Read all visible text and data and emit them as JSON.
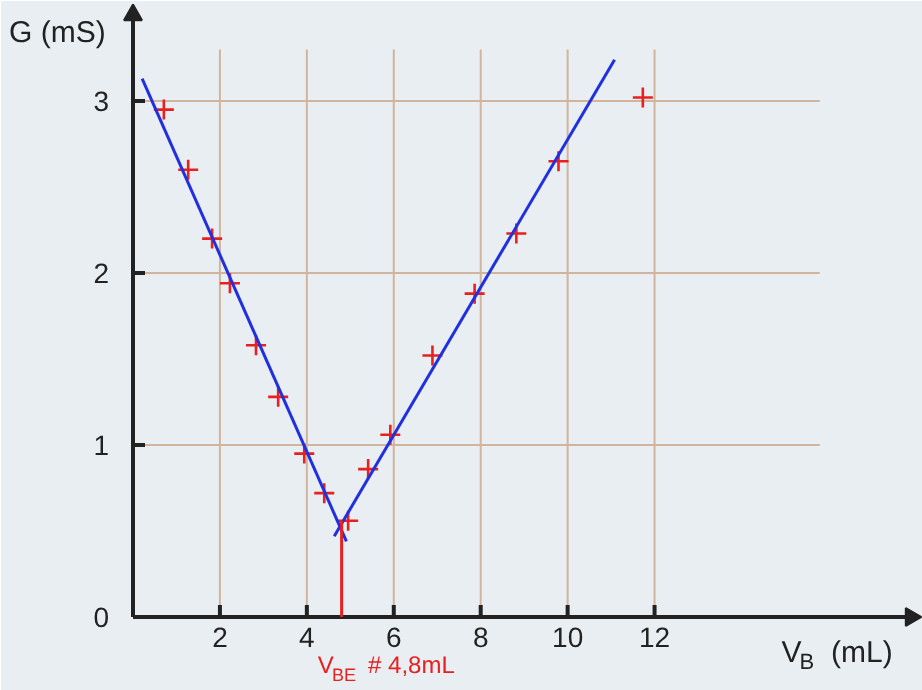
{
  "chart_data": {
    "type": "scatter",
    "xlabel": "V$_{B}$ (mL)",
    "ylabel": "G (mS)",
    "xlim": [
      0,
      17.9
    ],
    "ylim": [
      0,
      3.5
    ],
    "xticks": [
      2,
      4,
      6,
      8,
      10,
      12
    ],
    "yticks": [
      0,
      1,
      2,
      3
    ],
    "grid": true,
    "series": [
      {
        "marker": "cross",
        "color": "#e82020",
        "x": [
          0.71,
          1.27,
          1.82,
          2.23,
          2.83,
          3.34,
          3.94,
          4.4,
          4.95,
          5.41,
          5.92,
          6.89,
          7.86,
          8.82,
          9.79,
          11.73
        ],
        "values": [
          2.95,
          2.6,
          2.2,
          1.94,
          1.58,
          1.28,
          0.95,
          0.72,
          0.56,
          0.86,
          1.06,
          1.52,
          1.88,
          2.23,
          2.65,
          3.02
        ]
      },
      {
        "type": "line",
        "color": "#2030e0",
        "x": [
          0.21,
          4.91
        ],
        "values": [
          3.13,
          0.44
        ]
      },
      {
        "type": "line",
        "color": "#2030e0",
        "x": [
          4.63,
          11.08
        ],
        "values": [
          0.47,
          3.24
        ]
      },
      {
        "type": "line",
        "color": "#e82020",
        "x": [
          4.8,
          4.8
        ],
        "values": [
          0,
          0.56
        ]
      }
    ],
    "annotations": [
      {
        "text": "V$_{BE}$ # 4,8mL",
        "x": 4.8,
        "y": 0
      }
    ]
  }
}
